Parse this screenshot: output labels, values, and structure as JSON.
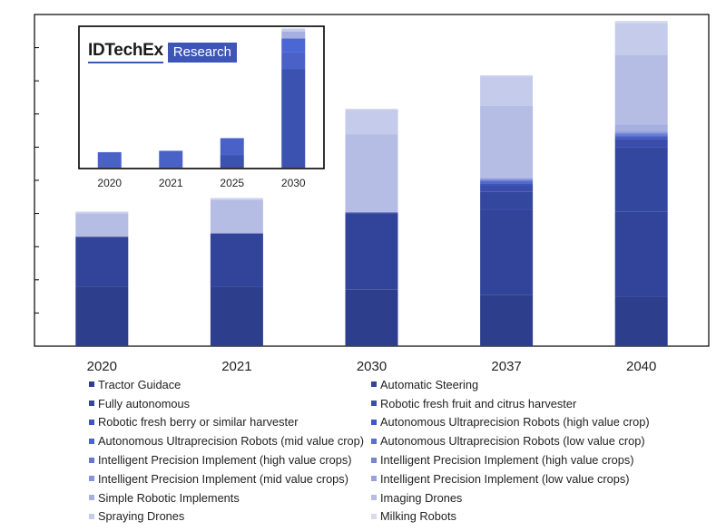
{
  "chart_data": [
    {
      "type": "bar",
      "stacked": true,
      "categories": [
        "2020",
        "2021",
        "2030",
        "2037",
        "2040"
      ],
      "ylim": [
        0,
        100
      ],
      "grid": false,
      "legend_position": "bottom",
      "series": [
        {
          "name": "Tractor Guidace",
          "color": "#2c3e8c",
          "values": [
            18,
            18,
            17,
            15.5,
            15
          ]
        },
        {
          "name": "Automatic Steering",
          "color": "#31449a",
          "values": [
            15,
            16,
            23,
            25.5,
            25.5
          ]
        },
        {
          "name": "Fully autonomous",
          "color": "#34479f",
          "values": [
            0,
            0,
            0,
            5.5,
            19.5
          ]
        },
        {
          "name": "Robotic fresh fruit and citrus harvester",
          "color": "#3a4dac",
          "values": [
            0,
            0,
            0.3,
            2,
            2.5
          ]
        },
        {
          "name": "Robotic fresh berry or similar harvester",
          "color": "#3e55b8",
          "values": [
            0,
            0,
            0,
            0.5,
            0.5
          ]
        },
        {
          "name": "Autonomous Ultraprecision Robots (high value crop)",
          "color": "#3d58c8",
          "values": [
            0,
            0,
            0,
            0.3,
            0.3
          ]
        },
        {
          "name": "Autonomous Ultraprecision Robots (mid value crop)",
          "color": "#4a64cf",
          "values": [
            0,
            0,
            0,
            0.3,
            0.3
          ]
        },
        {
          "name": "Autonomous Ultraprecision Robots (low value crop)",
          "color": "#5a6fcf",
          "values": [
            0,
            0,
            0,
            0.3,
            0.3
          ]
        },
        {
          "name": "Intelligent Precision Implement (high value crops)",
          "color": "#6577cc",
          "values": [
            0,
            0,
            0,
            0.2,
            0.2
          ]
        },
        {
          "name": "Intelligent Precision Implement (high value crops)",
          "color": "#7585d2",
          "values": [
            0,
            0,
            0,
            0.2,
            0.2
          ]
        },
        {
          "name": "Intelligent Precision Implement (mid value crops)",
          "color": "#8594d8",
          "values": [
            0,
            0,
            0,
            0.2,
            0.3
          ]
        },
        {
          "name": "Intelligent Precision Implement (low value crops)",
          "color": "#98a3db",
          "values": [
            0,
            0,
            0,
            0.2,
            0.3
          ]
        },
        {
          "name": "Simple Robotic Implements",
          "color": "#a6b0e0",
          "values": [
            0,
            0,
            0,
            0.2,
            2
          ]
        },
        {
          "name": "Imaging Drones",
          "color": "#b5bde4",
          "values": [
            7,
            10,
            23.5,
            21.5,
            21
          ]
        },
        {
          "name": "Spraying Drones",
          "color": "#c5cbea",
          "values": [
            0.3,
            0.4,
            7.5,
            9,
            9.5
          ]
        },
        {
          "name": "Milking Robots",
          "color": "#d7dbf0",
          "values": [
            0.3,
            0.3,
            0.3,
            0.3,
            0.7
          ]
        }
      ]
    },
    {
      "type": "bar",
      "stacked": true,
      "inset": true,
      "categories": [
        "2020",
        "2021",
        "2025",
        "2030"
      ],
      "ylim": [
        0,
        100
      ],
      "series": [
        {
          "name": "Tractor Guidace",
          "color": "#2c3e8c",
          "values": [
            0,
            0,
            0,
            0
          ]
        },
        {
          "name": "Automatic Steering",
          "color": "#3b52b0",
          "values": [
            0,
            0,
            9,
            70
          ]
        },
        {
          "name": "Fully autonomous",
          "color": "#4a62c8",
          "values": [
            11,
            12,
            12,
            12
          ]
        },
        {
          "name": "Robotic fresh fruit and citrus harvester",
          "color": "#4b67d4",
          "values": [
            0,
            0,
            0,
            10
          ]
        },
        {
          "name": "Robotic fresh berry or similar harvester",
          "color": "#a6b0e0",
          "values": [
            0,
            0,
            0,
            5
          ]
        },
        {
          "name": "Imaging Drones",
          "color": "#c5cbea",
          "values": [
            0,
            0,
            0,
            2
          ]
        }
      ]
    }
  ],
  "logo": {
    "main": "IDTechEx",
    "sub": "Research"
  }
}
